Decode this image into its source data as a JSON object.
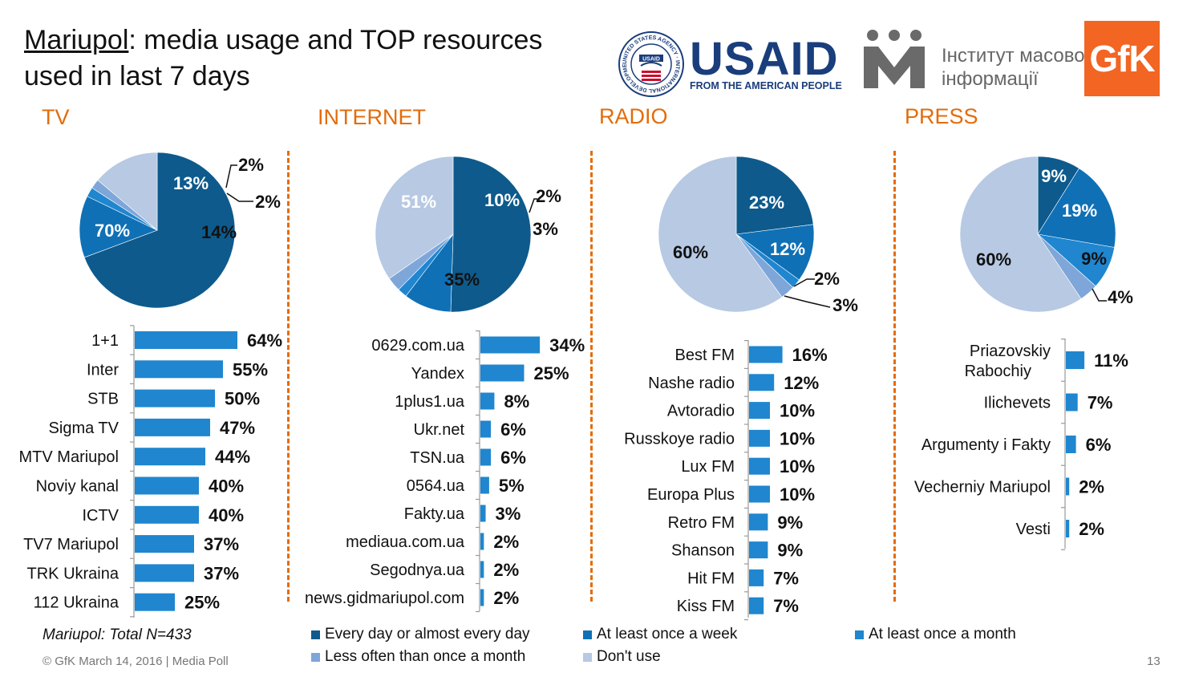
{
  "header": {
    "title_city": "Mariupol",
    "title_rest": ": media usage and TOP resources",
    "title_line2": "used in last 7 days"
  },
  "logos": {
    "usaid_word": "USAID",
    "usaid_tagline": "FROM THE AMERICAN PEOPLE",
    "usaid_seal_text": "UNITED STATES AGENCY · INTERNATIONAL DEVELOPMENT ·",
    "imi_line1": "Інститут масової",
    "imi_line2": "інформації",
    "gfk": "GfK"
  },
  "colors": {
    "every_day": "#0e5a8c",
    "week": "#0f70b6",
    "month": "#1f86cf",
    "less_often": "#7ea6d9",
    "dont_use": "#b7c9e3",
    "bar": "#1f86cf",
    "accent": "#e36c0a"
  },
  "legend": [
    {
      "label": "Every day or almost every day",
      "color": "#0e5a8c"
    },
    {
      "label": "At least once a week",
      "color": "#0f70b6"
    },
    {
      "label": "At least once a month",
      "color": "#1f86cf"
    },
    {
      "label": "Less often than once a month",
      "color": "#7ea6d9"
    },
    {
      "label": "Don't use",
      "color": "#b7c9e3"
    }
  ],
  "sample_note": "Mariupol: Total N=433",
  "footer": {
    "copyright": "© GfK March 14, 2016 | Media Poll",
    "page_number": "13"
  },
  "chart_data": [
    {
      "id": "tv-pie",
      "type": "pie",
      "title": "TV",
      "labels": [
        "Every day or almost every day",
        "At least once a week",
        "At least once a month",
        "Less often than once a month",
        "Don't use"
      ],
      "values": [
        70,
        13,
        2,
        2,
        14
      ],
      "value_labels": [
        "70%",
        "13%",
        "2%",
        "2%",
        "14%"
      ]
    },
    {
      "id": "tv-bar",
      "type": "bar",
      "orientation": "horizontal",
      "categories": [
        "1+1",
        "Inter",
        "STB",
        "Sigma TV",
        "MTV Mariupol",
        "Noviy kanal",
        "ICTV",
        "TV7 Mariupol",
        "TRK Ukraina",
        "112 Ukraina"
      ],
      "values": [
        64,
        55,
        50,
        47,
        44,
        40,
        40,
        37,
        37,
        25
      ],
      "value_labels": [
        "64%",
        "55%",
        "50%",
        "47%",
        "44%",
        "40%",
        "40%",
        "37%",
        "37%",
        "25%"
      ]
    },
    {
      "id": "internet-pie",
      "type": "pie",
      "title": "INTERNET",
      "labels": [
        "Every day or almost every day",
        "At least once a week",
        "At least once a month",
        "Less often than once a month",
        "Don't use"
      ],
      "values": [
        51,
        10,
        2,
        3,
        35
      ],
      "value_labels": [
        "51%",
        "10%",
        "2%",
        "3%",
        "35%"
      ]
    },
    {
      "id": "internet-bar",
      "type": "bar",
      "orientation": "horizontal",
      "categories": [
        "0629.com.ua",
        "Yandex",
        "1plus1.ua",
        "Ukr.net",
        "TSN.ua",
        "0564.ua",
        "Fakty.ua",
        "mediaua.com.ua",
        "Segodnya.ua",
        "news.gidmariupol.com"
      ],
      "values": [
        34,
        25,
        8,
        6,
        6,
        5,
        3,
        2,
        2,
        2
      ],
      "value_labels": [
        "34%",
        "25%",
        "8%",
        "6%",
        "6%",
        "5%",
        "3%",
        "2%",
        "2%",
        "2%"
      ]
    },
    {
      "id": "radio-pie",
      "type": "pie",
      "title": "RADIO",
      "labels": [
        "Every day or almost every day",
        "At least once a week",
        "At least once a month",
        "Less often than once a month",
        "Don't use"
      ],
      "values": [
        23,
        12,
        2,
        3,
        60
      ],
      "value_labels": [
        "23%",
        "12%",
        "2%",
        "3%",
        "60%"
      ]
    },
    {
      "id": "radio-bar",
      "type": "bar",
      "orientation": "horizontal",
      "categories": [
        "Best FM",
        "Nashe radio",
        "Avtoradio",
        "Russkoye radio",
        "Lux FM",
        "Europa Plus",
        "Retro FM",
        "Shanson",
        "Hit FM",
        "Kiss FM"
      ],
      "values": [
        16,
        12,
        10,
        10,
        10,
        10,
        9,
        9,
        7,
        7
      ],
      "value_labels": [
        "16%",
        "12%",
        "10%",
        "10%",
        "10%",
        "10%",
        "9%",
        "9%",
        "7%",
        "7%"
      ]
    },
    {
      "id": "press-pie",
      "type": "pie",
      "title": "PRESS",
      "labels": [
        "Every day or almost every day",
        "At least once a week",
        "At least once a month",
        "Less often than once a month",
        "Don't use"
      ],
      "values": [
        9,
        19,
        9,
        4,
        60
      ],
      "value_labels": [
        "9%",
        "19%",
        "9%",
        "4%",
        "60%"
      ]
    },
    {
      "id": "press-bar",
      "type": "bar",
      "orientation": "horizontal",
      "categories": [
        [
          "Priazovskiy",
          "Rabochiy"
        ],
        [
          "Ilichevets"
        ],
        [
          "Argumenty i Fakty"
        ],
        [
          "Vecherniy Mariupol"
        ],
        [
          "Vesti"
        ]
      ],
      "values": [
        11,
        7,
        6,
        2,
        2
      ],
      "value_labels": [
        "11%",
        "7%",
        "6%",
        "2%",
        "2%"
      ]
    }
  ]
}
